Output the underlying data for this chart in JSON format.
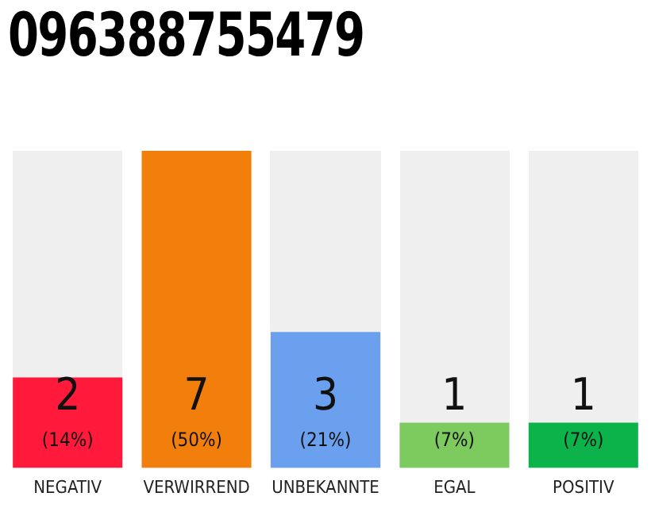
{
  "chart_data": {
    "type": "bar",
    "title": "096388755479",
    "categories": [
      "NEGATIV",
      "VERWIRREND",
      "UNBEKANNTE",
      "EGAL",
      "POSITIV"
    ],
    "values": [
      2,
      7,
      3,
      1,
      1
    ],
    "colors": [
      "#ff1a3c",
      "#f27f0c",
      "#6aa0ee",
      "#7dca5e",
      "#0cb24a"
    ],
    "data_labels": true,
    "annotations": [
      "(14%)",
      "(50%)",
      "(21%)",
      "(7%)",
      "(7%)"
    ],
    "grid": false,
    "legend": false
  }
}
